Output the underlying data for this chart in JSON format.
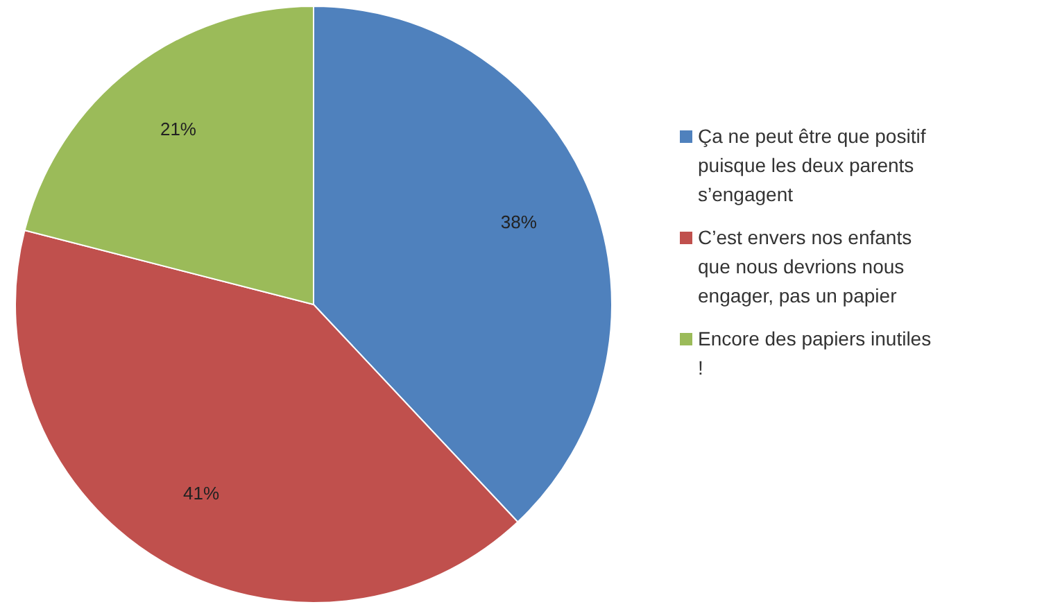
{
  "chart_data": {
    "type": "pie",
    "categories": [
      "Ça ne peut être que positif puisque les deux parents s’engagent",
      "C’est envers nos enfants que nous devrions nous engager, pas un papier",
      "Encore des papiers inutiles !"
    ],
    "values": [
      38,
      41,
      21
    ],
    "value_labels": [
      "38%",
      "41%",
      "21%"
    ],
    "colors": [
      "#4f81bd",
      "#c0504d",
      "#9bbb59"
    ],
    "legend": "right"
  }
}
